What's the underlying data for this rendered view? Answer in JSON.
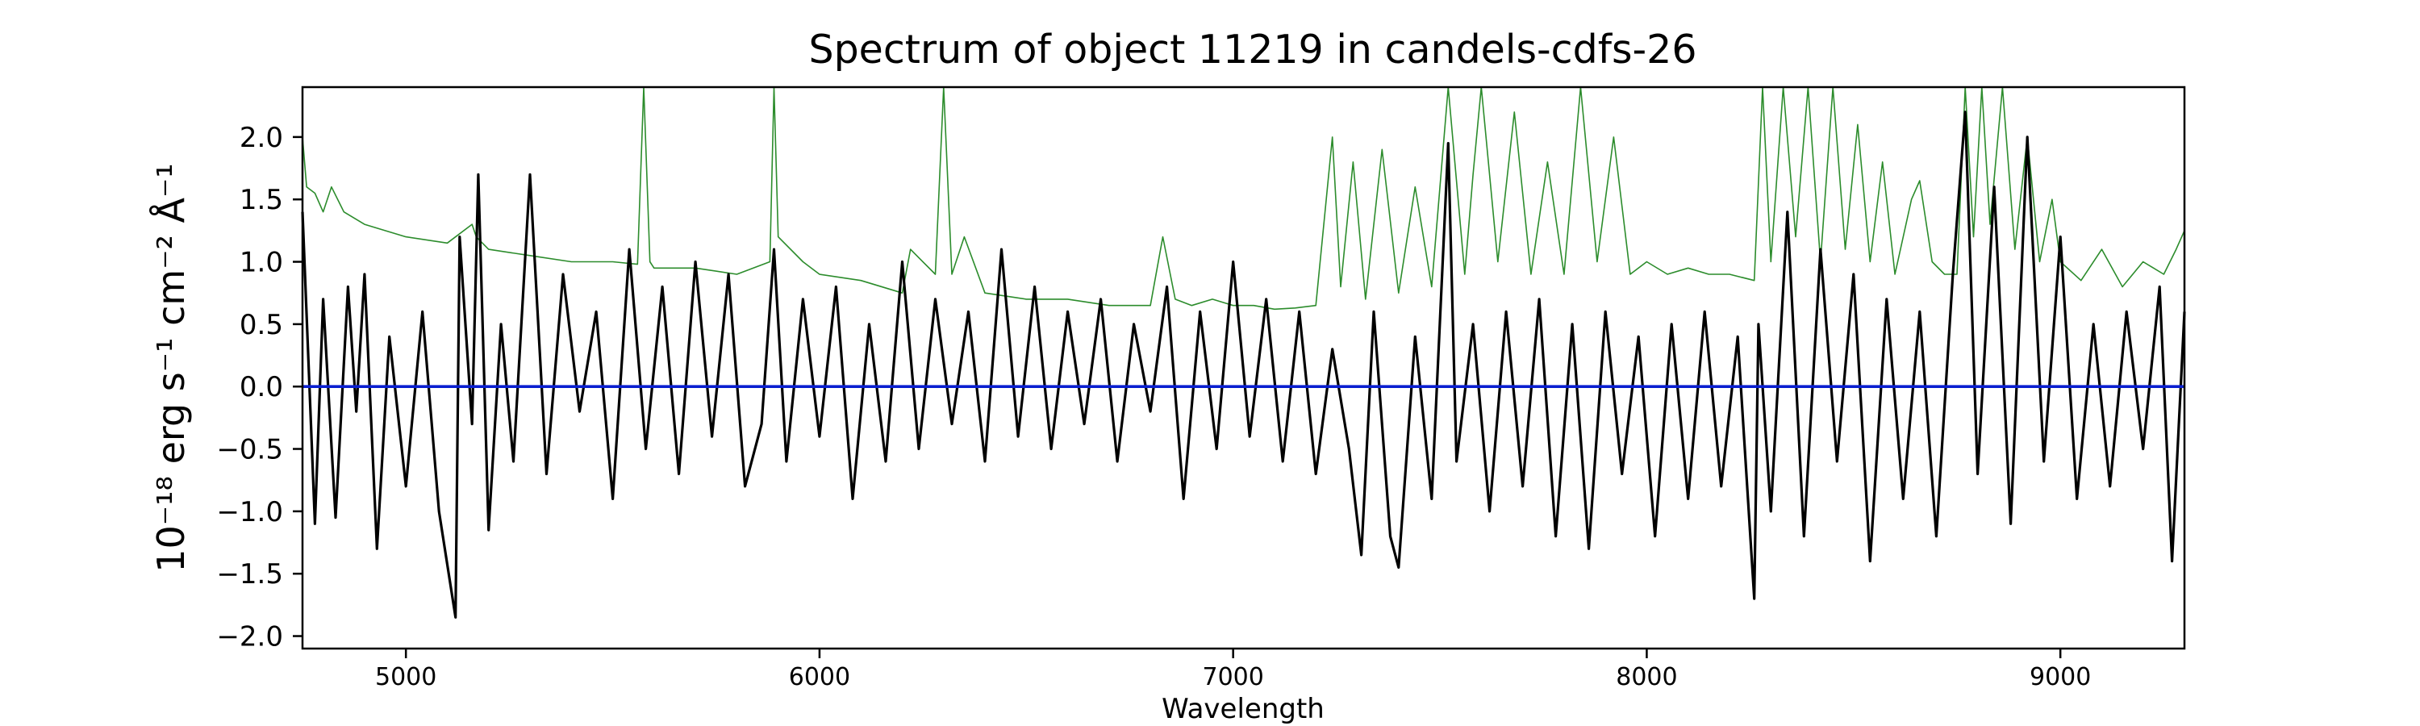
{
  "chart_data": {
    "type": "line",
    "title": "Spectrum of object 11219 in candels-cdfs-26",
    "xlabel": "Wavelength",
    "ylabel": "10⁻¹⁸ erg s⁻¹ cm⁻² Å⁻¹",
    "xlim": [
      4750,
      9300
    ],
    "ylim": [
      -2.1,
      2.4
    ],
    "x_ticks": [
      5000,
      6000,
      7000,
      8000,
      9000
    ],
    "y_ticks": [
      -2.0,
      -1.5,
      -1.0,
      -0.5,
      0.0,
      0.5,
      1.0,
      1.5,
      2.0
    ],
    "grid": false,
    "series": [
      {
        "color": "#000000",
        "style": "noisy flux spectrum",
        "x": [
          4750,
          4780,
          4800,
          4830,
          4860,
          4880,
          4900,
          4930,
          4960,
          5000,
          5040,
          5080,
          5120,
          5130,
          5160,
          5175,
          5200,
          5230,
          5260,
          5300,
          5340,
          5380,
          5420,
          5460,
          5500,
          5540,
          5580,
          5620,
          5660,
          5700,
          5740,
          5780,
          5820,
          5860,
          5890,
          5920,
          5960,
          6000,
          6040,
          6080,
          6120,
          6160,
          6200,
          6240,
          6280,
          6320,
          6360,
          6400,
          6440,
          6480,
          6520,
          6560,
          6600,
          6640,
          6680,
          6720,
          6760,
          6800,
          6840,
          6880,
          6920,
          6960,
          7000,
          7040,
          7080,
          7120,
          7160,
          7200,
          7240,
          7280,
          7310,
          7340,
          7380,
          7400,
          7440,
          7480,
          7520,
          7540,
          7580,
          7620,
          7660,
          7700,
          7740,
          7780,
          7820,
          7860,
          7900,
          7940,
          7980,
          8020,
          8060,
          8100,
          8140,
          8180,
          8220,
          8260,
          8270,
          8300,
          8340,
          8380,
          8420,
          8460,
          8500,
          8540,
          8580,
          8620,
          8660,
          8700,
          8740,
          8770,
          8800,
          8840,
          8880,
          8920,
          8960,
          9000,
          9040,
          9080,
          9120,
          9160,
          9200,
          9240,
          9270,
          9300
        ],
        "y": [
          1.4,
          -1.1,
          0.7,
          -1.05,
          0.8,
          -0.2,
          0.9,
          -1.3,
          0.4,
          -0.8,
          0.6,
          -1.0,
          -1.85,
          1.2,
          -0.3,
          1.7,
          -1.15,
          0.5,
          -0.6,
          1.7,
          -0.7,
          0.9,
          -0.2,
          0.6,
          -0.9,
          1.1,
          -0.5,
          0.8,
          -0.7,
          1.0,
          -0.4,
          0.9,
          -0.8,
          -0.3,
          1.1,
          -0.6,
          0.7,
          -0.4,
          0.8,
          -0.9,
          0.5,
          -0.6,
          1.0,
          -0.5,
          0.7,
          -0.3,
          0.6,
          -0.6,
          1.1,
          -0.4,
          0.8,
          -0.5,
          0.6,
          -0.3,
          0.7,
          -0.6,
          0.5,
          -0.2,
          0.8,
          -0.9,
          0.6,
          -0.5,
          1.0,
          -0.4,
          0.7,
          -0.6,
          0.6,
          -0.7,
          0.3,
          -0.5,
          -1.35,
          0.6,
          -1.2,
          -1.45,
          0.4,
          -0.9,
          1.95,
          -0.6,
          0.5,
          -1.0,
          0.6,
          -0.8,
          0.7,
          -1.2,
          0.5,
          -1.3,
          0.6,
          -0.7,
          0.4,
          -1.2,
          0.5,
          -0.9,
          0.6,
          -0.8,
          0.4,
          -1.7,
          0.5,
          -1.0,
          1.4,
          -1.2,
          1.1,
          -0.6,
          0.9,
          -1.4,
          0.7,
          -0.9,
          0.6,
          -1.2,
          0.9,
          2.2,
          -0.7,
          1.6,
          -1.1,
          2.0,
          -0.6,
          1.2,
          -0.9,
          0.5,
          -0.8,
          0.6,
          -0.5,
          0.8,
          -1.4,
          0.6
        ]
      },
      {
        "color": "#2c8c2c",
        "style": "error spectrum",
        "x": [
          4750,
          4760,
          4780,
          4800,
          4820,
          4850,
          4900,
          4950,
          5000,
          5100,
          5160,
          5170,
          5200,
          5300,
          5400,
          5500,
          5560,
          5575,
          5590,
          5600,
          5700,
          5800,
          5880,
          5890,
          5900,
          5960,
          6000,
          6100,
          6200,
          6220,
          6280,
          6300,
          6320,
          6350,
          6400,
          6500,
          6600,
          6700,
          6800,
          6830,
          6860,
          6900,
          6950,
          7000,
          7050,
          7100,
          7150,
          7200,
          7240,
          7260,
          7290,
          7320,
          7360,
          7400,
          7440,
          7480,
          7520,
          7560,
          7580,
          7600,
          7640,
          7680,
          7720,
          7760,
          7800,
          7840,
          7880,
          7920,
          7960,
          8000,
          8050,
          8100,
          8150,
          8200,
          8260,
          8280,
          8300,
          8330,
          8360,
          8390,
          8420,
          8450,
          8480,
          8510,
          8540,
          8570,
          8600,
          8640,
          8660,
          8690,
          8720,
          8750,
          8770,
          8790,
          8810,
          8830,
          8860,
          8890,
          8920,
          8950,
          8980,
          9000,
          9050,
          9100,
          9150,
          9200,
          9250,
          9280,
          9300
        ],
        "y": [
          2.0,
          1.6,
          1.55,
          1.4,
          1.6,
          1.4,
          1.3,
          1.25,
          1.2,
          1.15,
          1.3,
          1.2,
          1.1,
          1.05,
          1.0,
          1.0,
          0.98,
          2.6,
          1.0,
          0.95,
          0.95,
          0.9,
          1.0,
          2.6,
          1.2,
          1.0,
          0.9,
          0.85,
          0.75,
          1.1,
          0.9,
          2.5,
          0.9,
          1.2,
          0.75,
          0.7,
          0.7,
          0.65,
          0.65,
          1.2,
          0.7,
          0.65,
          0.7,
          0.65,
          0.65,
          0.62,
          0.63,
          0.65,
          2.0,
          0.8,
          1.8,
          0.7,
          1.9,
          0.75,
          1.6,
          0.8,
          2.4,
          0.9,
          1.7,
          2.6,
          1.0,
          2.2,
          0.9,
          1.8,
          0.9,
          2.4,
          1.0,
          2.0,
          0.9,
          1.0,
          0.9,
          0.95,
          0.9,
          0.9,
          0.85,
          2.6,
          1.0,
          2.6,
          1.2,
          2.6,
          1.0,
          2.6,
          1.1,
          2.1,
          1.0,
          1.8,
          0.9,
          1.5,
          1.65,
          1.0,
          0.9,
          0.9,
          2.6,
          1.2,
          2.6,
          1.3,
          2.6,
          1.1,
          2.0,
          1.0,
          1.5,
          1.0,
          0.85,
          1.1,
          0.8,
          1.0,
          0.9,
          1.1,
          1.25
        ]
      },
      {
        "color": "#0a1fd0",
        "style": "continuum model",
        "x": [
          4750,
          9300
        ],
        "y": [
          0.0,
          0.0
        ]
      }
    ]
  }
}
